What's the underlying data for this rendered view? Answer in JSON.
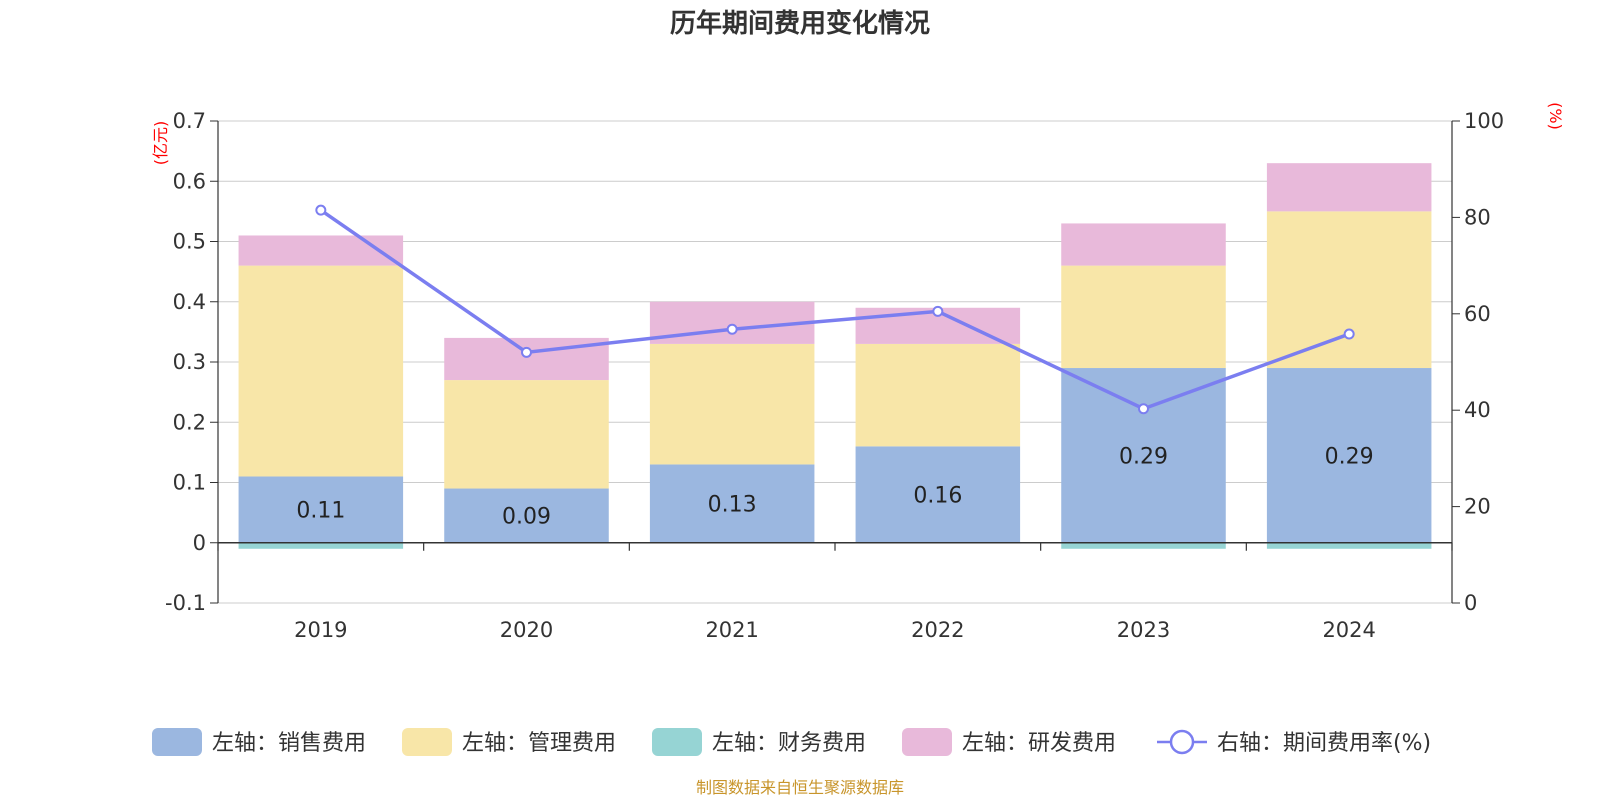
{
  "chart_data": {
    "type": "bar",
    "title": "历年期间费用变化情况",
    "categories": [
      "2019",
      "2020",
      "2021",
      "2022",
      "2023",
      "2024"
    ],
    "left_axis": {
      "unit": "(亿元)",
      "ylim": [
        -0.1,
        0.7
      ],
      "ticks": [
        "0.7",
        "0.6",
        "0.5",
        "0.4",
        "0.3",
        "0.2",
        "0.1",
        "0",
        "-0.1"
      ]
    },
    "right_axis": {
      "unit": "(%)",
      "ylim": [
        0,
        100
      ],
      "ticks": [
        "100",
        "80",
        "60",
        "40",
        "20",
        "0"
      ]
    },
    "series": [
      {
        "name": "左轴：销售费用",
        "type": "bar",
        "stack": true,
        "axis": "left",
        "color": "#9bb7e0",
        "values": [
          0.11,
          0.09,
          0.13,
          0.16,
          0.29,
          0.29
        ],
        "labels": [
          "0.11",
          "0.09",
          "0.13",
          "0.16",
          "0.29",
          "0.29"
        ]
      },
      {
        "name": "左轴：管理费用",
        "type": "bar",
        "stack": true,
        "axis": "left",
        "color": "#f8e6a8",
        "values": [
          0.35,
          0.18,
          0.2,
          0.17,
          0.17,
          0.26
        ]
      },
      {
        "name": "左轴：财务费用",
        "type": "bar",
        "stack": true,
        "axis": "left",
        "color": "#96d4d4",
        "values": [
          -0.01,
          0.0,
          0.0,
          0.0,
          -0.01,
          -0.01
        ]
      },
      {
        "name": "左轴：研发费用",
        "type": "bar",
        "stack": true,
        "axis": "left",
        "color": "#e8b9da",
        "values": [
          0.05,
          0.07,
          0.07,
          0.06,
          0.07,
          0.08
        ]
      },
      {
        "name": "右轴：期间费用率(%)",
        "type": "line",
        "axis": "right",
        "color": "#7b7ef0",
        "values": [
          81.5,
          52.0,
          56.8,
          60.5,
          40.3,
          55.8
        ]
      }
    ],
    "legend_position": "bottom",
    "grid": true
  },
  "source_note": "制图数据来自恒生聚源数据库"
}
